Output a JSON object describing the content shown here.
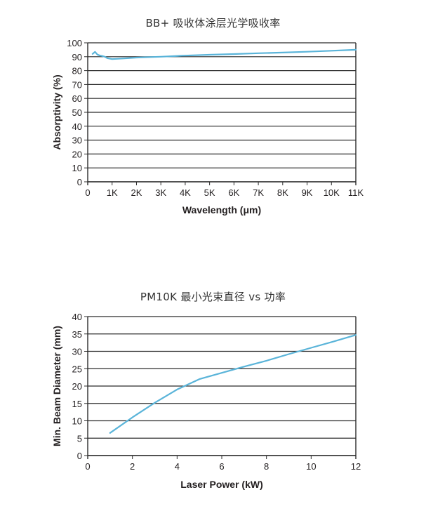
{
  "chart_data": [
    {
      "type": "line",
      "title": "BB+ 吸收体涂层光学吸收率",
      "xlabel": "Wavelength (μm)",
      "ylabel": "Absorptivity (%)",
      "xlim": [
        0,
        11000
      ],
      "ylim": [
        0,
        100
      ],
      "x_ticks": [
        0,
        1000,
        2000,
        3000,
        4000,
        5000,
        6000,
        7000,
        8000,
        9000,
        10000,
        11000
      ],
      "x_tick_labels": [
        "0",
        "1K",
        "2K",
        "3K",
        "4K",
        "5K",
        "6K",
        "7K",
        "8K",
        "9K",
        "10K",
        "11K"
      ],
      "y_ticks": [
        0,
        10,
        20,
        30,
        40,
        50,
        60,
        70,
        80,
        90,
        100
      ],
      "y_tick_labels": [
        "0",
        "10",
        "20",
        "30",
        "40",
        "50",
        "60",
        "70",
        "80",
        "90",
        "100"
      ],
      "grid": "horizontal",
      "legend": null,
      "series": [
        {
          "name": "BB+ absorptivity",
          "color": "#5ab4d9",
          "x": [
            200,
            300,
            400,
            500,
            600,
            700,
            800,
            1000,
            1500,
            2000,
            3000,
            4000,
            5000,
            6000,
            7000,
            8000,
            9000,
            10000,
            11000
          ],
          "y": [
            92,
            93.5,
            91.5,
            90.8,
            90.5,
            90,
            89,
            88.3,
            88.8,
            89.4,
            90,
            90.8,
            91.4,
            91.9,
            92.5,
            93,
            93.6,
            94.3,
            95
          ]
        }
      ]
    },
    {
      "type": "line",
      "title": "PM10K 最小光束直径 vs 功率",
      "xlabel": "Laser Power (kW)",
      "ylabel": "Min. Beam Diameter (mm)",
      "xlim": [
        0,
        12
      ],
      "ylim": [
        0,
        40
      ],
      "x_ticks": [
        0,
        2,
        4,
        6,
        8,
        10,
        12
      ],
      "x_tick_labels": [
        "0",
        "2",
        "4",
        "6",
        "8",
        "10",
        "12"
      ],
      "y_ticks": [
        0,
        5,
        10,
        15,
        20,
        25,
        30,
        35,
        40
      ],
      "y_tick_labels": [
        "0",
        "5",
        "10",
        "15",
        "20",
        "25",
        "30",
        "35",
        "40"
      ],
      "grid": "horizontal",
      "legend": null,
      "series": [
        {
          "name": "Min. beam diameter",
          "color": "#5ab4d9",
          "x": [
            1,
            2,
            3,
            4,
            5,
            6,
            7,
            8,
            9,
            10,
            11,
            12
          ],
          "y": [
            6.5,
            11,
            15.2,
            19,
            22,
            23.8,
            25.6,
            27.3,
            29.2,
            31,
            32.8,
            34.7
          ]
        }
      ]
    }
  ]
}
